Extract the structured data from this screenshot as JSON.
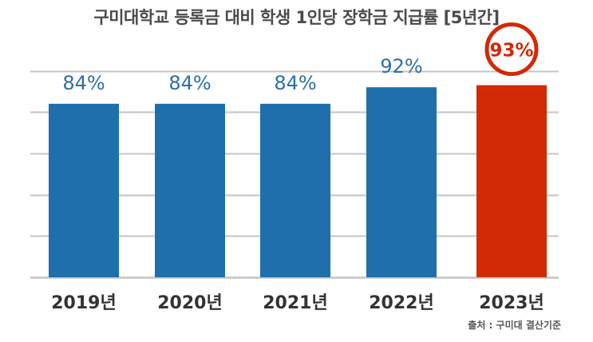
{
  "title": "구미대학교 등록금 대비 학생 1인당 장학금 지급률  [5년간]",
  "source": "출처 : 구미대 결산기준",
  "colors": {
    "default_bar": "#1f6fad",
    "highlight_bar": "#d12a05",
    "default_label": "#2d6fa8",
    "highlight_label": "#d12a05",
    "gridline": "#c4c4c4",
    "axis_label": "#333333"
  },
  "chart_data": {
    "type": "bar",
    "categories": [
      "2019년",
      "2020년",
      "2021년",
      "2022년",
      "2023년"
    ],
    "values": [
      84,
      84,
      84,
      92,
      93
    ],
    "data_labels": [
      "84%",
      "84%",
      "84%",
      "92%",
      "93%"
    ],
    "highlight_index": 4,
    "highlight_style": "circled-label",
    "unit": "%",
    "ylim": [
      0,
      100
    ],
    "grid": true,
    "legend": "none",
    "xlabel": "",
    "ylabel": ""
  }
}
